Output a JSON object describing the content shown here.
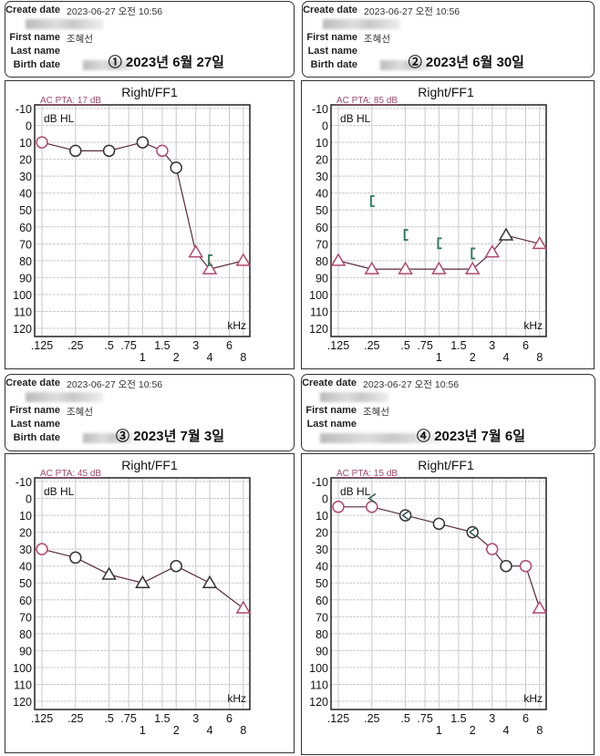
{
  "panels": [
    {
      "create_date_label": "Create date",
      "create_date": "2023-06-27 오전 10:56",
      "first_name_label": "First name",
      "first_name": "조혜선",
      "last_name_label": "Last name",
      "birth_date_label": "Birth date",
      "caption": "① 2023년 6월 27일"
    },
    {
      "create_date_label": "Create date",
      "create_date": "2023-06-27 오전 10:56",
      "first_name_label": "First name",
      "first_name": "조혜선",
      "last_name_label": "Last name",
      "birth_date_label": "Birth date",
      "caption": "② 2023년 6월 30일"
    },
    {
      "create_date_label": "Create date",
      "create_date": "2023-06-27 오전 10:56",
      "first_name_label": "First name",
      "first_name": "조혜선",
      "last_name_label": "Last name",
      "birth_date_label": "Birth date",
      "caption": "③ 2023년 7월 3일"
    },
    {
      "create_date_label": "Create date",
      "create_date": "2023-06-27 오전 10:56",
      "first_name_label": "First name",
      "first_name": "조혜선",
      "last_name_label": "Last name",
      "caption": "④ 2023년 7월 6일"
    }
  ],
  "colors": {
    "marker": "#b24a6a",
    "line": "#5a2a3a",
    "bone": "#2e7d5b",
    "grid": "#c8c8c8",
    "pta": "#a04a6a"
  },
  "chart_data": [
    {
      "type": "line",
      "title": "Right/FF1",
      "annotation": "AC PTA: 17 dB",
      "ylabel": "dB HL",
      "xlabel": "kHz",
      "ylim": [
        -10,
        120
      ],
      "y_inverted": true,
      "x_scale": "log2",
      "grid": true,
      "x_ticks": [
        ".125",
        ".25",
        ".5",
        ".75",
        "1",
        "1.5",
        "2",
        "3",
        "4",
        "6",
        "8"
      ],
      "y_ticks": [
        "-10",
        "0",
        "10",
        "20",
        "30",
        "40",
        "50",
        "60",
        "70",
        "80",
        "90",
        "100",
        "110",
        "120"
      ],
      "air": [
        {
          "f": 0.125,
          "db": 10,
          "m": "circle"
        },
        {
          "f": 0.25,
          "db": 15,
          "m": "circle",
          "dark": true
        },
        {
          "f": 0.5,
          "db": 15,
          "m": "circle",
          "dark": true
        },
        {
          "f": 1,
          "db": 10,
          "m": "circle",
          "dark": true
        },
        {
          "f": 1.5,
          "db": 15,
          "m": "circle"
        },
        {
          "f": 2,
          "db": 25,
          "m": "circle",
          "dark": true
        },
        {
          "f": 3,
          "db": 75,
          "m": "triangle"
        },
        {
          "f": 4,
          "db": 85,
          "m": "triangle"
        },
        {
          "f": 8,
          "db": 80,
          "m": "triangle"
        }
      ],
      "bone": [
        {
          "f": 4,
          "db": 80
        }
      ]
    },
    {
      "type": "line",
      "title": "Right/FF1",
      "annotation": "AC PTA: 85 dB",
      "ylabel": "dB HL",
      "xlabel": "kHz",
      "ylim": [
        -10,
        120
      ],
      "y_inverted": true,
      "x_scale": "log2",
      "grid": true,
      "x_ticks": [
        ".125",
        ".25",
        ".5",
        ".75",
        "1",
        "1.5",
        "2",
        "3",
        "4",
        "6",
        "8"
      ],
      "y_ticks": [
        "-10",
        "0",
        "10",
        "20",
        "30",
        "40",
        "50",
        "60",
        "70",
        "80",
        "90",
        "100",
        "110",
        "120"
      ],
      "air": [
        {
          "f": 0.125,
          "db": 80,
          "m": "triangle"
        },
        {
          "f": 0.25,
          "db": 85,
          "m": "triangle"
        },
        {
          "f": 0.5,
          "db": 85,
          "m": "triangle"
        },
        {
          "f": 1,
          "db": 85,
          "m": "triangle"
        },
        {
          "f": 2,
          "db": 85,
          "m": "triangle"
        },
        {
          "f": 3,
          "db": 75,
          "m": "triangle"
        },
        {
          "f": 4,
          "db": 65,
          "m": "triangle",
          "dark": true
        },
        {
          "f": 8,
          "db": 70,
          "m": "triangle"
        }
      ],
      "bone": [
        {
          "f": 0.25,
          "db": 45
        },
        {
          "f": 0.5,
          "db": 65
        },
        {
          "f": 1,
          "db": 70
        },
        {
          "f": 2,
          "db": 76
        }
      ]
    },
    {
      "type": "line",
      "title": "Right/FF1",
      "annotation": "AC PTA: 45 dB",
      "ylabel": "dB HL",
      "xlabel": "kHz",
      "ylim": [
        -10,
        120
      ],
      "y_inverted": true,
      "x_scale": "log2",
      "grid": true,
      "x_ticks": [
        ".125",
        ".25",
        ".5",
        ".75",
        "1",
        "1.5",
        "2",
        "3",
        "4",
        "6",
        "8"
      ],
      "y_ticks": [
        "-10",
        "0",
        "10",
        "20",
        "30",
        "40",
        "50",
        "60",
        "70",
        "80",
        "90",
        "100",
        "110",
        "120"
      ],
      "air": [
        {
          "f": 0.125,
          "db": 30,
          "m": "circle"
        },
        {
          "f": 0.25,
          "db": 35,
          "m": "circle",
          "dark": true
        },
        {
          "f": 0.5,
          "db": 45,
          "m": "triangle",
          "dark": true
        },
        {
          "f": 1,
          "db": 50,
          "m": "triangle",
          "dark": true
        },
        {
          "f": 2,
          "db": 40,
          "m": "circle",
          "dark": true
        },
        {
          "f": 4,
          "db": 50,
          "m": "triangle",
          "dark": true
        },
        {
          "f": 8,
          "db": 65,
          "m": "triangle"
        }
      ],
      "bone": []
    },
    {
      "type": "line",
      "title": "Right/FF1",
      "annotation": "AC PTA: 15 dB",
      "ylabel": "dB HL",
      "xlabel": "kHz",
      "ylim": [
        -10,
        120
      ],
      "y_inverted": true,
      "x_scale": "log2",
      "grid": true,
      "x_ticks": [
        ".125",
        ".25",
        ".5",
        ".75",
        "1",
        "1.5",
        "2",
        "3",
        "4",
        "6",
        "8"
      ],
      "y_ticks": [
        "-10",
        "0",
        "10",
        "20",
        "30",
        "40",
        "50",
        "60",
        "70",
        "80",
        "90",
        "100",
        "110",
        "120"
      ],
      "air": [
        {
          "f": 0.125,
          "db": 5,
          "m": "circle"
        },
        {
          "f": 0.25,
          "db": 5,
          "m": "circle"
        },
        {
          "f": 0.5,
          "db": 10,
          "m": "circle",
          "dark": true
        },
        {
          "f": 1,
          "db": 15,
          "m": "circle",
          "dark": true
        },
        {
          "f": 2,
          "db": 20,
          "m": "circle",
          "dark": true
        },
        {
          "f": 3,
          "db": 30,
          "m": "circle"
        },
        {
          "f": 4,
          "db": 40,
          "m": "circle",
          "dark": true
        },
        {
          "f": 6,
          "db": 40,
          "m": "circle"
        },
        {
          "f": 8,
          "db": 65,
          "m": "triangle"
        }
      ],
      "bone_masked": [
        {
          "f": 0.25,
          "db": 0
        },
        {
          "f": 0.5,
          "db": 10
        },
        {
          "f": 2,
          "db": 20
        }
      ]
    }
  ]
}
